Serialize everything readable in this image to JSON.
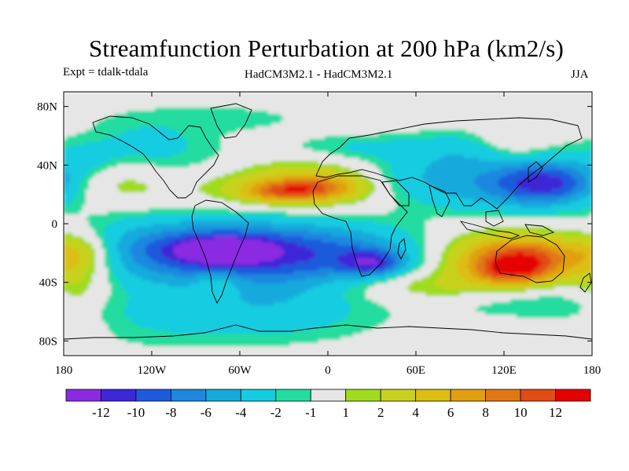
{
  "chart_data": {
    "type": "contour-map",
    "title": "Streamfunction Perturbation at 200 hPa (km2/s)",
    "subtitle_left": "Expt = tdalk-tdala",
    "subtitle_center": "HadCM3M2.1 - HadCM3M2.1",
    "subtitle_right": "JJA",
    "xaxis": {
      "range": [
        -180,
        180
      ],
      "ticks": [
        -180,
        -120,
        -60,
        0,
        60,
        120,
        180
      ],
      "tick_labels": [
        "180",
        "120W",
        "60W",
        "0",
        "60E",
        "120E",
        "180"
      ]
    },
    "yaxis": {
      "range": [
        -90,
        90
      ],
      "ticks": [
        -80,
        -40,
        0,
        40,
        80
      ],
      "tick_labels": [
        "80S",
        "40S",
        "0",
        "40N",
        "80N"
      ]
    },
    "colorbar": {
      "levels": [
        -12,
        -10,
        -8,
        -6,
        -4,
        -2,
        -1,
        1,
        2,
        4,
        6,
        8,
        10,
        12
      ],
      "labels": [
        "-12",
        "-10",
        "-8",
        "-6",
        "-4",
        "-2",
        "-1",
        "1",
        "2",
        "4",
        "6",
        "8",
        "10",
        "12"
      ],
      "colors": [
        "#8a2be2",
        "#3c28d8",
        "#1e5adc",
        "#1e87de",
        "#14aadc",
        "#14cce0",
        "#22dca0",
        "#e6e6e6",
        "#a0dc1e",
        "#c8d21e",
        "#dcbe14",
        "#e1a00f",
        "#e17814",
        "#e14b14",
        "#e60000"
      ]
    },
    "features": [
      {
        "lon": -105,
        "lat": -18,
        "lonr": 80,
        "latr": 14,
        "value": -5
      },
      {
        "lon": -65,
        "lat": -22,
        "lonr": 55,
        "latr": 18,
        "value": -6
      },
      {
        "lon": -72,
        "lat": -18,
        "lonr": 22,
        "latr": 6,
        "value": -8.5
      },
      {
        "lon": 15,
        "lat": -22,
        "lonr": 45,
        "latr": 14,
        "value": -4.5
      },
      {
        "lon": 30,
        "lat": -27,
        "lonr": 14,
        "latr": 6,
        "value": -7
      },
      {
        "lon": -30,
        "lat": -55,
        "lonr": 45,
        "latr": 14,
        "value": -2
      },
      {
        "lon": -110,
        "lat": -68,
        "lonr": 90,
        "latr": 13,
        "value": -2
      },
      {
        "lon": 60,
        "lat": 32,
        "lonr": 35,
        "latr": 12,
        "value": -3
      },
      {
        "lon": 115,
        "lat": 25,
        "lonr": 45,
        "latr": 15,
        "value": -4
      },
      {
        "lon": 150,
        "lat": 28,
        "lonr": 25,
        "latr": 10,
        "value": -8.5
      },
      {
        "lon": 105,
        "lat": 52,
        "lonr": 35,
        "latr": 10,
        "value": -2.5
      },
      {
        "lon": 20,
        "lat": 52,
        "lonr": 35,
        "latr": 6,
        "value": -2
      },
      {
        "lon": -100,
        "lat": 40,
        "lonr": 40,
        "latr": 12,
        "value": -2
      },
      {
        "lon": -85,
        "lat": 72,
        "lonr": 60,
        "latr": 8,
        "value": -1.5
      },
      {
        "lon": -125,
        "lat": 56,
        "lonr": 25,
        "latr": 8,
        "value": -2
      },
      {
        "lon": 145,
        "lat": -55,
        "lonr": 45,
        "latr": 10,
        "value": -2
      },
      {
        "lon": -165,
        "lat": 45,
        "lonr": 15,
        "latr": 8,
        "value": -2
      },
      {
        "lon": -20,
        "lat": 27,
        "lonr": 55,
        "latr": 12,
        "value": 4
      },
      {
        "lon": -32,
        "lat": 22,
        "lonr": 18,
        "latr": 5,
        "value": 6.5
      },
      {
        "lon": -5,
        "lat": 25,
        "lonr": 20,
        "latr": 6,
        "value": 6
      },
      {
        "lon": 135,
        "lat": -22,
        "lonr": 45,
        "latr": 15,
        "value": 6
      },
      {
        "lon": 132,
        "lat": -23,
        "lonr": 25,
        "latr": 8,
        "value": 7.5
      },
      {
        "lon": 125,
        "lat": -33,
        "lonr": 18,
        "latr": 6,
        "value": 7
      },
      {
        "lon": -170,
        "lat": -20,
        "lonr": 18,
        "latr": 10,
        "value": 5
      },
      {
        "lon": -170,
        "lat": -50,
        "lonr": 15,
        "latr": 15,
        "value": 2.5
      },
      {
        "lon": 55,
        "lat": -42,
        "lonr": 45,
        "latr": 8,
        "value": 2.5
      },
      {
        "lon": 150,
        "lat": -72,
        "lonr": 40,
        "latr": 8,
        "value": 2
      },
      {
        "lon": 125,
        "lat": 55,
        "lonr": 18,
        "latr": 10,
        "value": 3
      },
      {
        "lon": -75,
        "lat": -40,
        "lonr": 12,
        "latr": 6,
        "value": 3
      },
      {
        "lon": -145,
        "lat": 28,
        "lonr": 28,
        "latr": 10,
        "value": 2
      }
    ]
  }
}
